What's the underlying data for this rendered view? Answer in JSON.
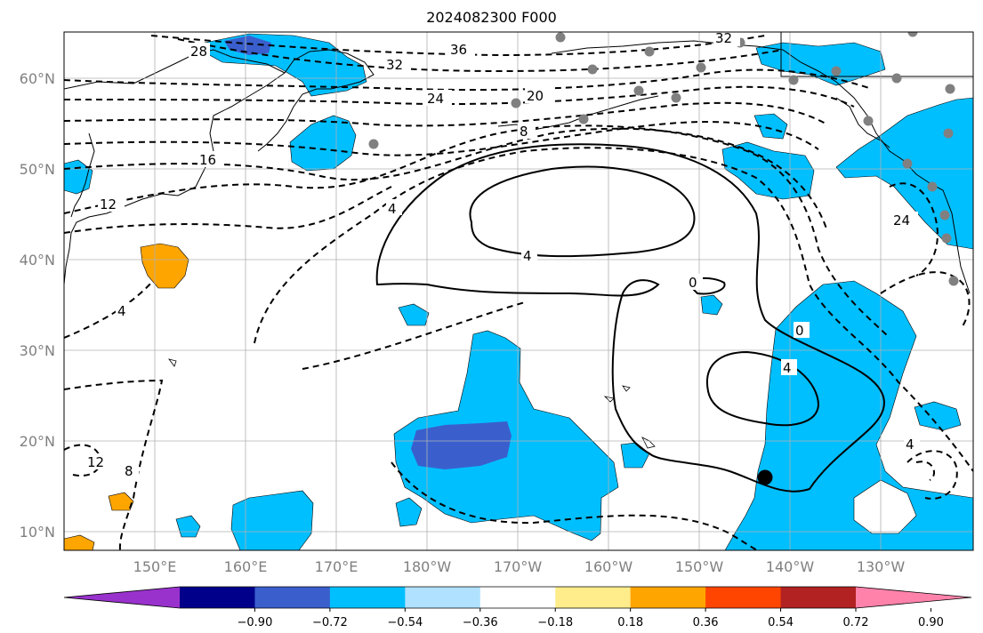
{
  "title": "2024082300 F000",
  "lat_labels": [
    "60°N",
    "50°N",
    "40°N",
    "30°N",
    "20°N",
    "10°N"
  ],
  "lon_labels": [
    "150°E",
    "160°E",
    "170°E",
    "180°W",
    "170°W",
    "160°W",
    "150°W",
    "140°W",
    "130°W"
  ],
  "colorbar": {
    "colors": [
      "#9932cc",
      "#00008b",
      "#3a5fcd",
      "#00bfff",
      "#b0e2ff",
      "#ffffff",
      "#ffec8b",
      "#ffa500",
      "#ff4500",
      "#b22222",
      "#ff82ab"
    ],
    "tick_labels": [
      "−0.90",
      "−0.72",
      "−0.54",
      "−0.36",
      "−0.18",
      "0.18",
      "0.36",
      "0.54",
      "0.72",
      "0.90"
    ]
  },
  "contour_labels": [
    "28",
    "36",
    "32",
    "32",
    "24",
    "20",
    "16",
    "8",
    "12",
    "4",
    "4",
    "4",
    "0",
    "0",
    "4",
    "12",
    "8",
    "24",
    "4"
  ],
  "colors": {
    "shade_blue": "#00bfff",
    "shade_mid": "#3a5fcd",
    "shade_orange": "#ffa500",
    "station": "#808080"
  }
}
